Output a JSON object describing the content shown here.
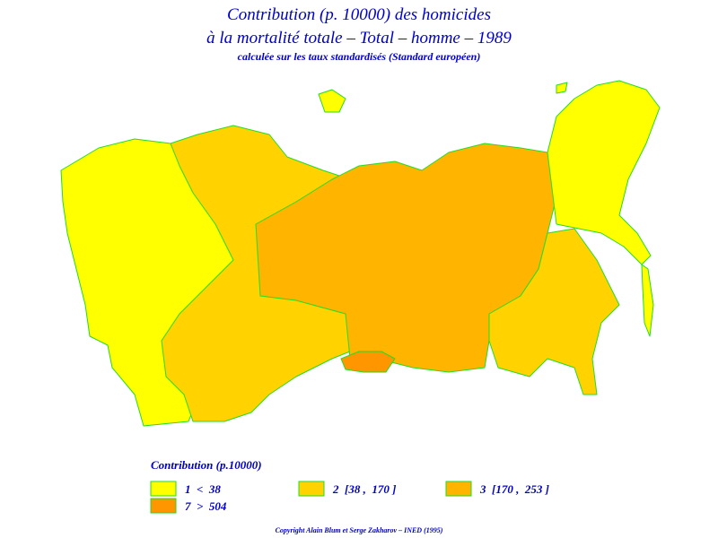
{
  "title": [
    "Contribution (p. 10000) des homicides",
    "à la mortalité totale – Total – homme – 1989"
  ],
  "subtitle": "calculée sur les taux standardisés (Standard européen)",
  "legend": {
    "title": "Contribution (p.10000)",
    "items": [
      {
        "label": "1  <  38",
        "color": "#ffff00"
      },
      {
        "label": "2  [38 ,  170 ]",
        "color": "#ffd200"
      },
      {
        "label": "3  [170 ,  253 ]",
        "color": "#ffb400"
      },
      {
        "label": "7  >  504",
        "color": "#ff9600"
      }
    ]
  },
  "copyright": "Copyright Alain Blum et Serge Zakharov – INED (1995)"
}
